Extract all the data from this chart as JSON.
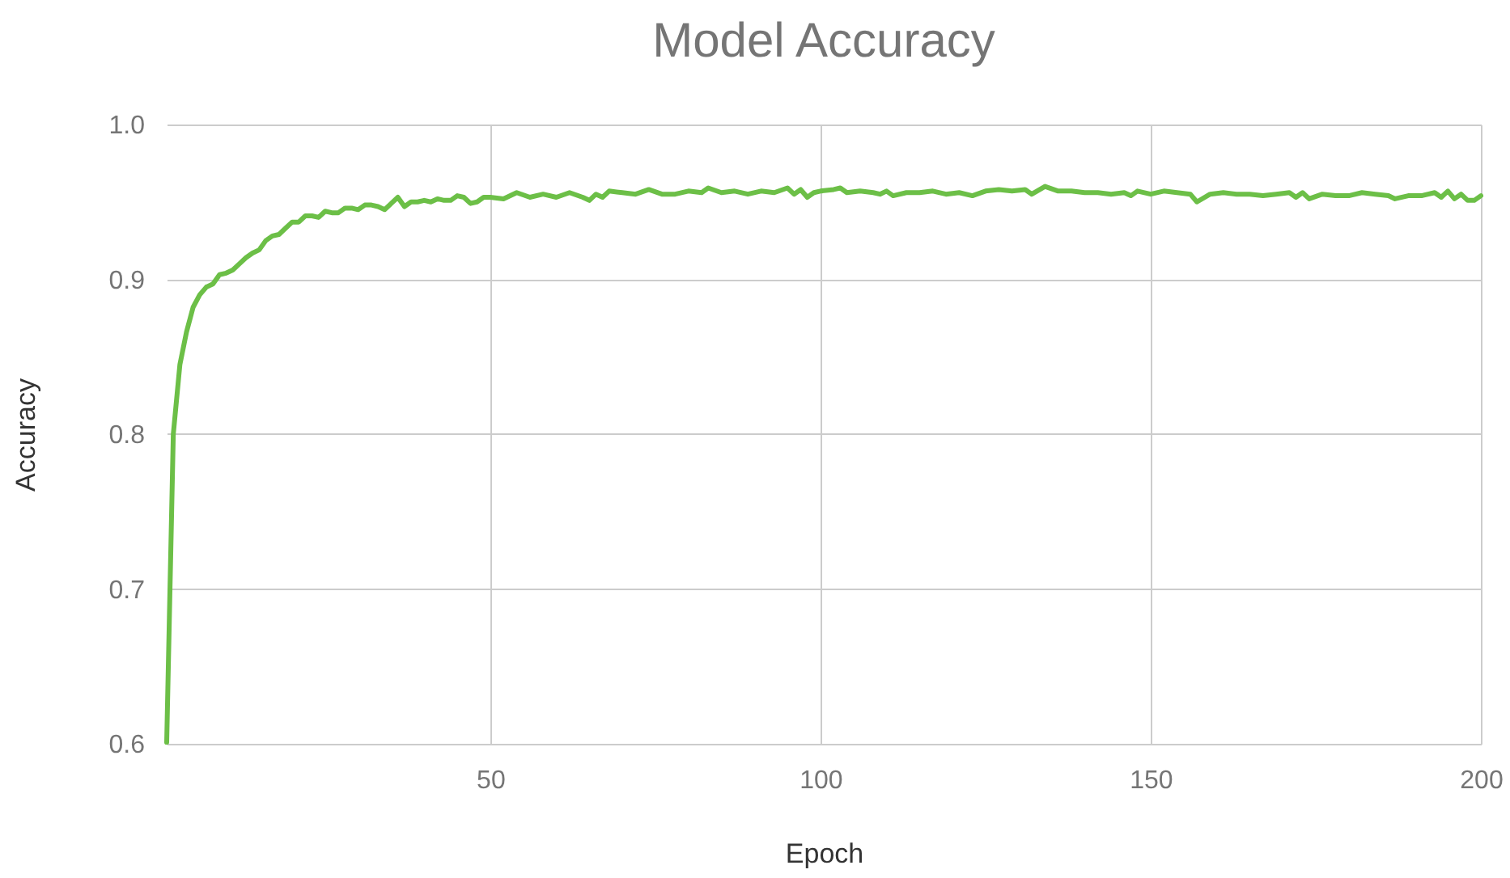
{
  "chart_data": {
    "type": "line",
    "title": "Model Accuracy",
    "xlabel": "Epoch",
    "ylabel": "Accuracy",
    "x": [
      1,
      2,
      3,
      4,
      5,
      6,
      7,
      8,
      9,
      10,
      11,
      12,
      13,
      14,
      15,
      16,
      17,
      18,
      19,
      20,
      21,
      22,
      23,
      24,
      25,
      26,
      27,
      28,
      29,
      30,
      31,
      32,
      33,
      34,
      35,
      36,
      37,
      38,
      39,
      40,
      41,
      42,
      43,
      44,
      45,
      46,
      47,
      48,
      49,
      50,
      52,
      54,
      56,
      58,
      60,
      62,
      64,
      65,
      66,
      67,
      68,
      70,
      72,
      74,
      76,
      78,
      80,
      82,
      83,
      85,
      87,
      89,
      91,
      93,
      95,
      96,
      97,
      98,
      99,
      100,
      102,
      103,
      104,
      106,
      108,
      109,
      110,
      111,
      113,
      115,
      117,
      119,
      121,
      123,
      125,
      127,
      129,
      131,
      132,
      134,
      136,
      138,
      140,
      142,
      144,
      146,
      147,
      148,
      150,
      152,
      154,
      156,
      157,
      159,
      161,
      163,
      165,
      167,
      169,
      171,
      172,
      173,
      174,
      176,
      178,
      180,
      182,
      184,
      186,
      187,
      189,
      191,
      193,
      194,
      195,
      196,
      197,
      198,
      199,
      200
    ],
    "series": [
      {
        "color": "#6cbf47",
        "values": [
          0.601,
          0.8,
          0.845,
          0.866,
          0.882,
          0.89,
          0.895,
          0.897,
          0.903,
          0.904,
          0.906,
          0.91,
          0.914,
          0.917,
          0.919,
          0.925,
          0.928,
          0.929,
          0.933,
          0.937,
          0.937,
          0.941,
          0.941,
          0.94,
          0.944,
          0.943,
          0.943,
          0.946,
          0.946,
          0.945,
          0.948,
          0.948,
          0.947,
          0.945,
          0.949,
          0.953,
          0.947,
          0.95,
          0.95,
          0.951,
          0.95,
          0.952,
          0.951,
          0.951,
          0.954,
          0.953,
          0.949,
          0.95,
          0.953,
          0.953,
          0.952,
          0.956,
          0.953,
          0.955,
          0.953,
          0.956,
          0.953,
          0.951,
          0.955,
          0.953,
          0.957,
          0.956,
          0.955,
          0.958,
          0.955,
          0.955,
          0.957,
          0.956,
          0.959,
          0.956,
          0.957,
          0.955,
          0.957,
          0.956,
          0.959,
          0.955,
          0.958,
          0.953,
          0.956,
          0.957,
          0.958,
          0.959,
          0.956,
          0.957,
          0.956,
          0.955,
          0.957,
          0.954,
          0.956,
          0.956,
          0.957,
          0.955,
          0.956,
          0.954,
          0.957,
          0.958,
          0.957,
          0.958,
          0.955,
          0.96,
          0.957,
          0.957,
          0.956,
          0.956,
          0.955,
          0.956,
          0.954,
          0.957,
          0.955,
          0.957,
          0.956,
          0.955,
          0.95,
          0.955,
          0.956,
          0.955,
          0.955,
          0.954,
          0.955,
          0.956,
          0.953,
          0.956,
          0.952,
          0.955,
          0.954,
          0.954,
          0.956,
          0.955,
          0.954,
          0.952,
          0.954,
          0.954,
          0.956,
          0.953,
          0.957,
          0.952,
          0.955,
          0.951,
          0.951,
          0.954
        ]
      }
    ],
    "xlim": [
      1,
      200
    ],
    "xticks": [
      50,
      100,
      150,
      200
    ],
    "ylim": [
      0.6,
      1.0
    ],
    "yticks": [
      0.6,
      0.7,
      0.8,
      0.9,
      {
        "value": 1.0,
        "label": "1.0"
      }
    ],
    "grid": true,
    "marker": "none",
    "line_style": "solid"
  }
}
